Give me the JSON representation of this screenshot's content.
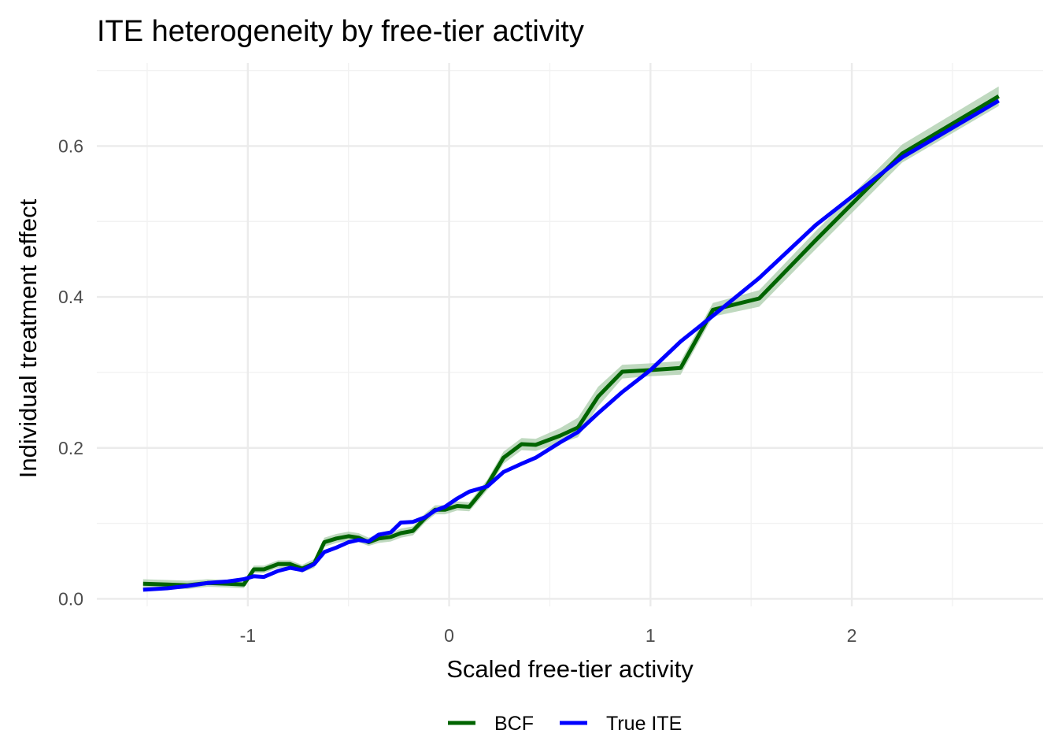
{
  "chart_data": {
    "type": "line",
    "title": "ITE heterogeneity by free-tier activity",
    "xlabel": "Scaled free-tier activity",
    "ylabel": "Individual treatment effect",
    "xlim": [
      -1.75,
      2.95
    ],
    "ylim": [
      -0.01,
      0.71
    ],
    "x_ticks": [
      -1,
      0,
      1,
      2
    ],
    "x_tick_labels": [
      "-1",
      "0",
      "1",
      "2"
    ],
    "y_ticks": [
      0.0,
      0.2,
      0.4,
      0.6
    ],
    "y_tick_labels": [
      "0.0",
      "0.2",
      "0.4",
      "0.6"
    ],
    "grid": true,
    "legend_position": "bottom",
    "series": [
      {
        "name": "BCF",
        "color": "#006400",
        "band_color": "#a9cca9",
        "x": [
          -1.52,
          -1.4,
          -1.3,
          -1.2,
          -1.1,
          -1.02,
          -0.97,
          -0.92,
          -0.85,
          -0.79,
          -0.73,
          -0.67,
          -0.62,
          -0.56,
          -0.5,
          -0.45,
          -0.4,
          -0.35,
          -0.29,
          -0.24,
          -0.18,
          -0.12,
          -0.07,
          -0.02,
          0.04,
          0.1,
          0.19,
          0.27,
          0.36,
          0.43,
          0.55,
          0.64,
          0.74,
          0.86,
          1.0,
          1.15,
          1.31,
          1.54,
          1.82,
          2.25,
          2.73
        ],
        "y": [
          0.02,
          0.019,
          0.018,
          0.021,
          0.02,
          0.019,
          0.039,
          0.039,
          0.046,
          0.046,
          0.04,
          0.047,
          0.075,
          0.08,
          0.083,
          0.081,
          0.075,
          0.08,
          0.082,
          0.087,
          0.09,
          0.107,
          0.118,
          0.118,
          0.123,
          0.122,
          0.151,
          0.187,
          0.205,
          0.204,
          0.216,
          0.227,
          0.268,
          0.301,
          0.303,
          0.306,
          0.383,
          0.398,
          0.475,
          0.59,
          0.666
        ],
        "lower": [
          0.014,
          0.013,
          0.013,
          0.016,
          0.015,
          0.014,
          0.034,
          0.034,
          0.041,
          0.041,
          0.035,
          0.041,
          0.069,
          0.074,
          0.077,
          0.075,
          0.07,
          0.074,
          0.076,
          0.081,
          0.084,
          0.101,
          0.112,
          0.112,
          0.117,
          0.116,
          0.144,
          0.179,
          0.197,
          0.196,
          0.206,
          0.214,
          0.255,
          0.292,
          0.295,
          0.297,
          0.374,
          0.387,
          0.463,
          0.578,
          0.653
        ],
        "upper": [
          0.026,
          0.025,
          0.024,
          0.026,
          0.025,
          0.024,
          0.044,
          0.044,
          0.051,
          0.051,
          0.045,
          0.053,
          0.081,
          0.086,
          0.089,
          0.087,
          0.081,
          0.086,
          0.088,
          0.093,
          0.096,
          0.113,
          0.124,
          0.124,
          0.129,
          0.128,
          0.158,
          0.195,
          0.213,
          0.212,
          0.226,
          0.24,
          0.281,
          0.31,
          0.312,
          0.315,
          0.392,
          0.409,
          0.487,
          0.602,
          0.679
        ]
      },
      {
        "name": "True ITE",
        "color": "#0000ff",
        "x": [
          -1.52,
          -1.4,
          -1.3,
          -1.2,
          -1.1,
          -1.02,
          -0.97,
          -0.92,
          -0.85,
          -0.79,
          -0.73,
          -0.67,
          -0.62,
          -0.56,
          -0.5,
          -0.45,
          -0.4,
          -0.35,
          -0.29,
          -0.24,
          -0.18,
          -0.12,
          -0.07,
          -0.02,
          0.04,
          0.1,
          0.19,
          0.27,
          0.36,
          0.43,
          0.55,
          0.64,
          0.74,
          0.86,
          1.0,
          1.15,
          1.31,
          1.54,
          1.82,
          2.25,
          2.73
        ],
        "y": [
          0.012,
          0.014,
          0.017,
          0.021,
          0.023,
          0.026,
          0.03,
          0.029,
          0.037,
          0.041,
          0.038,
          0.046,
          0.062,
          0.068,
          0.075,
          0.078,
          0.076,
          0.085,
          0.088,
          0.101,
          0.102,
          0.108,
          0.117,
          0.122,
          0.133,
          0.142,
          0.149,
          0.168,
          0.179,
          0.187,
          0.207,
          0.221,
          0.246,
          0.274,
          0.303,
          0.341,
          0.375,
          0.425,
          0.495,
          0.585,
          0.66
        ]
      }
    ]
  }
}
